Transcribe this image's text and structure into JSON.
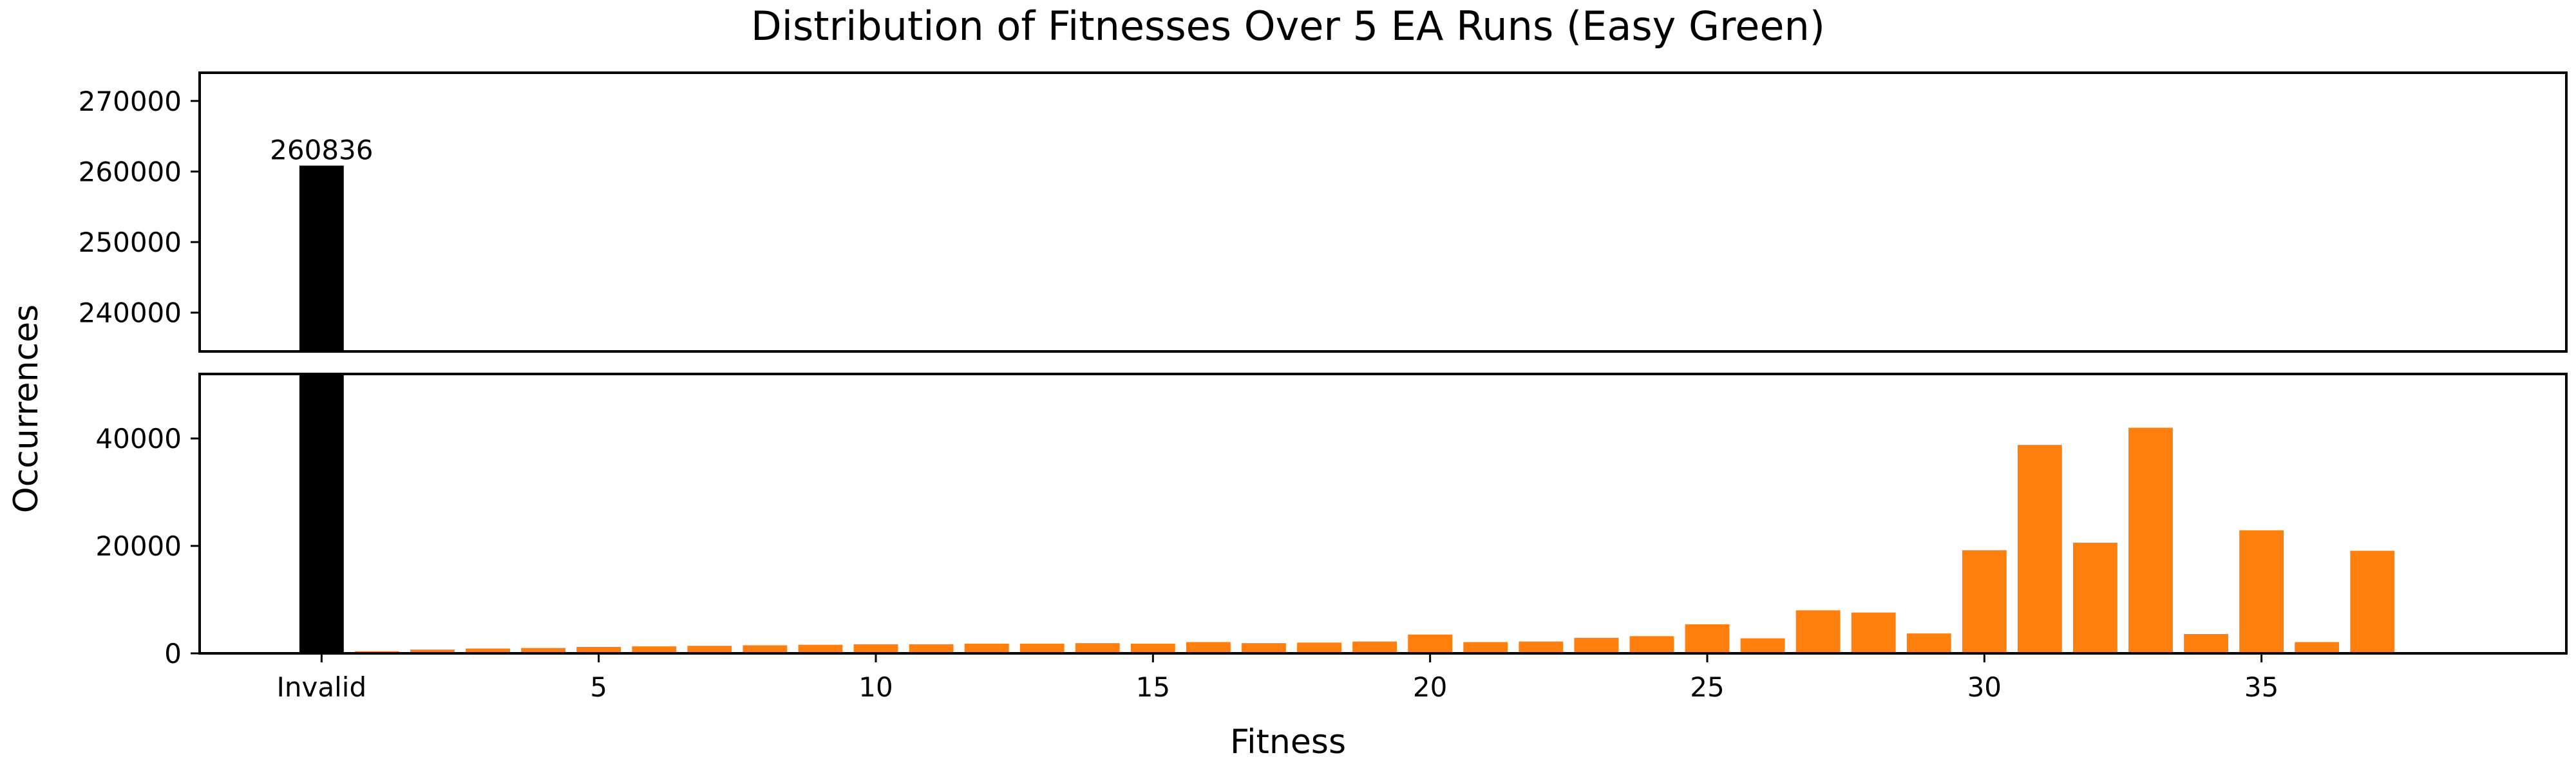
{
  "chart_data": {
    "type": "bar",
    "broken_y_axis": true,
    "title": "Distribution of Fitnesses Over 5 EA Runs (Easy Green)",
    "xlabel": "Fitness",
    "ylabel": "Occurrences",
    "x_ticks": [
      {
        "label": "Invalid",
        "x": 0
      },
      {
        "label": "5",
        "x": 5
      },
      {
        "label": "10",
        "x": 10
      },
      {
        "label": "15",
        "x": 15
      },
      {
        "label": "20",
        "x": 20
      },
      {
        "label": "25",
        "x": 25
      },
      {
        "label": "30",
        "x": 30
      },
      {
        "label": "35",
        "x": 35
      }
    ],
    "x_range": [
      -2.2,
      40.5
    ],
    "upper_axis": {
      "ylim": [
        234500,
        274000
      ],
      "yticks": [
        240000,
        250000,
        260000,
        270000
      ]
    },
    "lower_axis": {
      "ylim": [
        0,
        52000
      ],
      "yticks": [
        0,
        20000,
        40000
      ]
    },
    "grid": false,
    "colors": {
      "invalid_bar": "#000000",
      "fitness_bars": "#ff7f0e"
    },
    "invalid": {
      "label": "Invalid",
      "value": 260836,
      "data_label": "260836"
    },
    "fitness": [
      1,
      2,
      3,
      4,
      5,
      6,
      7,
      8,
      9,
      10,
      11,
      12,
      13,
      14,
      15,
      16,
      17,
      18,
      19,
      20,
      21,
      22,
      23,
      24,
      25,
      26,
      27,
      28,
      29,
      30,
      31,
      32,
      33,
      34,
      35,
      36,
      37
    ],
    "values": [
      400,
      700,
      900,
      1000,
      1200,
      1300,
      1400,
      1500,
      1600,
      1700,
      1700,
      1800,
      1800,
      1900,
      1800,
      2100,
      1900,
      2000,
      2200,
      3500,
      2100,
      2200,
      2900,
      3200,
      5400,
      2800,
      8000,
      7600,
      3700,
      19200,
      38800,
      20600,
      42000,
      3600,
      22900,
      2100,
      19100
    ]
  }
}
